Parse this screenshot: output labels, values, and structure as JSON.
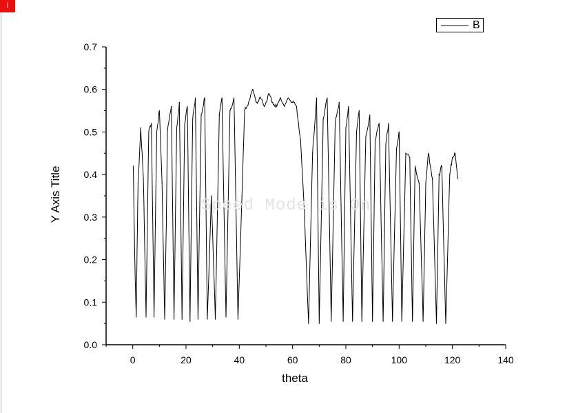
{
  "app": {
    "badge_label": "i"
  },
  "watermark_text": "Speed Mode is On",
  "colors": {
    "line": "#000000",
    "badge": "#e8120c",
    "watermark": "#e4e4e4"
  },
  "chart_data": {
    "type": "line",
    "xlabel": "theta",
    "ylabel": "Y Axis Title",
    "xlim": [
      -10,
      140
    ],
    "ylim": [
      0,
      0.7
    ],
    "xticks": [
      "0",
      "20",
      "40",
      "60",
      "80",
      "100",
      "120",
      "140"
    ],
    "yticks": [
      "0.0",
      "0.1",
      "0.2",
      "0.3",
      "0.4",
      "0.5",
      "0.6",
      "0.7"
    ],
    "grid": false,
    "legend_position": "top-right",
    "series": [
      {
        "name": "B",
        "x": [
          0.2,
          0.7,
          1.3,
          2,
          3,
          4,
          5,
          6,
          7,
          8,
          9,
          10,
          11,
          12,
          12.6,
          13,
          14.5,
          15.5,
          16.5,
          17.5,
          18.5,
          19.5,
          20.5,
          21.5,
          22.5,
          23.5,
          24.5,
          25.7,
          27,
          28,
          29.5,
          31,
          32.5,
          33.5,
          35,
          36.5,
          38,
          39.5,
          41,
          42,
          43.5,
          45,
          46.5,
          48,
          49.5,
          51,
          52.5,
          54,
          55.5,
          57,
          58.5,
          60,
          61.5,
          63,
          64.5,
          66,
          67.5,
          69,
          70,
          71.5,
          73,
          74.5,
          76,
          77.5,
          79,
          80,
          81,
          82.5,
          84,
          85,
          86,
          87.5,
          89,
          90,
          91,
          92.5,
          94,
          95,
          96,
          97.5,
          99,
          100,
          101,
          102.5,
          104,
          105,
          106,
          107.5,
          109,
          110,
          111,
          112.5,
          114,
          115,
          116,
          117.5,
          119,
          120,
          121,
          122
        ],
        "values": [
          0.42,
          0.22,
          0.065,
          0.38,
          0.51,
          0.39,
          0.065,
          0.5,
          0.52,
          0.065,
          0.5,
          0.55,
          0.38,
          0.06,
          0.28,
          0.5,
          0.56,
          0.06,
          0.51,
          0.57,
          0.06,
          0.52,
          0.56,
          0.055,
          0.53,
          0.58,
          0.06,
          0.54,
          0.58,
          0.06,
          0.35,
          0.06,
          0.54,
          0.58,
          0.065,
          0.55,
          0.58,
          0.06,
          0.35,
          0.55,
          0.57,
          0.6,
          0.57,
          0.58,
          0.56,
          0.59,
          0.57,
          0.56,
          0.58,
          0.56,
          0.58,
          0.57,
          0.56,
          0.48,
          0.3,
          0.05,
          0.45,
          0.58,
          0.05,
          0.53,
          0.58,
          0.055,
          0.52,
          0.57,
          0.055,
          0.51,
          0.56,
          0.055,
          0.5,
          0.55,
          0.055,
          0.49,
          0.54,
          0.055,
          0.48,
          0.52,
          0.055,
          0.47,
          0.52,
          0.055,
          0.46,
          0.5,
          0.055,
          0.45,
          0.44,
          0.055,
          0.42,
          0.38,
          0.055,
          0.38,
          0.45,
          0.39,
          0.05,
          0.4,
          0.42,
          0.05,
          0.4,
          0.44,
          0.45,
          0.39
        ]
      }
    ]
  }
}
